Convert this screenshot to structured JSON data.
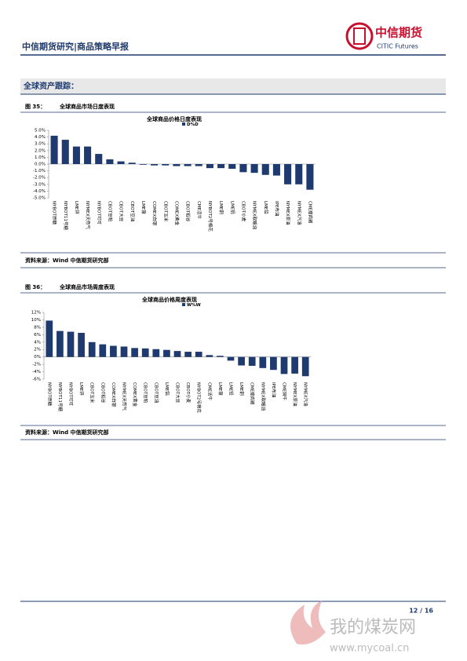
{
  "header": {
    "title": "中信期货研究|商品策略早报",
    "logo_cn": "中信期货",
    "logo_en": "CITIC Futures"
  },
  "section": "全球资产跟踪：",
  "figures": [
    {
      "label": "图 35：",
      "caption": "全球商品市场日度表现",
      "source": "资料来源：Wind  中信期货研究部"
    },
    {
      "label": "图 36：",
      "caption": "全球商品市场周度表现",
      "source": "资料来源：Wind  中信期货研究部"
    }
  ],
  "chart_data": [
    {
      "type": "bar",
      "title": "全球商品价格日度表现",
      "categories": [
        "NYBOT原糖",
        "NYBOT11号糖",
        "LME锌",
        "NYMEX天然气",
        "NYBOT可可",
        "CBOT豆粕",
        "CBOT大豆",
        "CBOT豆油",
        "LME镍",
        "COMEX白银",
        "CBOT玉米",
        "COMEX黄金",
        "CBOT稻谷",
        "CME活牛",
        "NYBOT2号棉花",
        "LME铜",
        "LME铝",
        "CBOT小麦",
        "NYMEX取暖油",
        "LME铅",
        "IPE布油",
        "NYMEX原油",
        "NYMEX汽油",
        "CME瘦肉猪"
      ],
      "series": [
        {
          "name": "D%D",
          "color": "#1f3a6e",
          "values": [
            4.2,
            3.6,
            2.6,
            2.6,
            1.5,
            0.7,
            0.4,
            0.2,
            -0.1,
            -0.2,
            -0.2,
            -0.3,
            -0.3,
            -0.3,
            -0.6,
            -0.6,
            -0.7,
            -1.2,
            -1.3,
            -1.6,
            -1.7,
            -3.0,
            -3.0,
            -3.8
          ]
        }
      ],
      "ylim": [
        -5,
        5
      ],
      "yticks": [
        {
          "value": -5,
          "label": "-5.0%"
        },
        {
          "value": -4,
          "label": "-4.0%"
        },
        {
          "value": -3,
          "label": "-3.0%"
        },
        {
          "value": -2,
          "label": "-2.0%"
        },
        {
          "value": -1,
          "label": "-1.0%"
        },
        {
          "value": 0,
          "label": "0.0%"
        },
        {
          "value": 1,
          "label": "1.0%"
        },
        {
          "value": 2,
          "label": "2.0%"
        },
        {
          "value": 3,
          "label": "3.0%"
        },
        {
          "value": 4,
          "label": "4.0%"
        },
        {
          "value": 5,
          "label": "5.0%"
        }
      ],
      "grid": false
    },
    {
      "type": "bar",
      "title": "全球商品价格周度表现",
      "categories": [
        "NYBOT原糖",
        "NYBOT11号糖",
        "NYBOT可可",
        "LME锌",
        "CBOT玉米",
        "CBOT稻谷",
        "COMEX白银",
        "NYMEX天然气",
        "COMEX黄金",
        "CBOT豆粕",
        "CBOT豆油",
        "LME铝",
        "CBOT大豆",
        "CBOT小麦",
        "NYBOT2号棉花",
        "CME活牛",
        "LME镍",
        "LME铅",
        "LME铜",
        "CME瘦肉猪",
        "NYMEX取暖油",
        "IPE布油",
        "CME饲牛",
        "NYMEX原油",
        "NYMEX汽油"
      ],
      "series": [
        {
          "name": "W%W",
          "color": "#1f3a6e",
          "values": [
            9.8,
            7.0,
            6.8,
            6.5,
            4.0,
            3.4,
            3.0,
            2.8,
            2.4,
            2.3,
            2.1,
            1.9,
            1.6,
            1.4,
            1.4,
            0.5,
            0.3,
            -1.0,
            -2.3,
            -2.4,
            -3.0,
            -3.5,
            -4.6,
            -4.5,
            -5.2
          ]
        }
      ],
      "ylim": [
        -6,
        12
      ],
      "yticks": [
        {
          "value": -6,
          "label": "-6%"
        },
        {
          "value": -4,
          "label": "-4%"
        },
        {
          "value": -2,
          "label": "-2%"
        },
        {
          "value": 0,
          "label": "0%"
        },
        {
          "value": 2,
          "label": "2%"
        },
        {
          "value": 4,
          "label": "4%"
        },
        {
          "value": 6,
          "label": "6%"
        },
        {
          "value": 8,
          "label": "8%"
        },
        {
          "value": 10,
          "label": "10%"
        },
        {
          "value": 12,
          "label": "12%"
        }
      ],
      "grid": false
    }
  ],
  "footer": {
    "page": "12 / 16",
    "watermark_cn": "我的煤炭网",
    "watermark_url": "www.mycoal.cn"
  }
}
